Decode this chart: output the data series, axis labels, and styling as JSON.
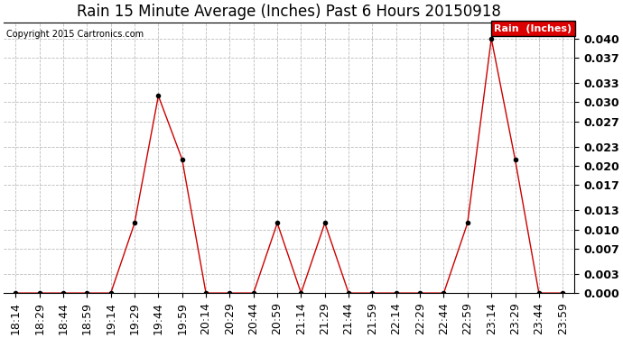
{
  "title": "Rain 15 Minute Average (Inches) Past 6 Hours 20150918",
  "copyright_text": "Copyright 2015 Cartronics.com",
  "legend_label": "Rain  (Inches)",
  "x_labels": [
    "18:14",
    "18:29",
    "18:44",
    "18:59",
    "19:14",
    "19:29",
    "19:44",
    "19:59",
    "20:14",
    "20:29",
    "20:44",
    "20:59",
    "21:14",
    "21:29",
    "21:44",
    "21:59",
    "22:14",
    "22:29",
    "22:44",
    "22:59",
    "23:14",
    "23:29",
    "23:44",
    "23:59"
  ],
  "y_values": [
    0.0,
    0.0,
    0.0,
    0.0,
    0.0,
    0.011,
    0.031,
    0.021,
    0.0,
    0.0,
    0.0,
    0.011,
    0.0,
    0.011,
    0.0,
    0.0,
    0.0,
    0.0,
    0.0,
    0.011,
    0.04,
    0.021,
    0.0,
    0.0
  ],
  "ylim": [
    0.0,
    0.0425
  ],
  "yticks": [
    0.0,
    0.003,
    0.007,
    0.01,
    0.013,
    0.017,
    0.02,
    0.023,
    0.027,
    0.03,
    0.033,
    0.037,
    0.04
  ],
  "line_color": "#cc0000",
  "marker_color": "black",
  "marker_size": 3,
  "grid_color": "#bbbbbb",
  "background_color": "#ffffff",
  "title_fontsize": 12,
  "copyright_fontsize": 7,
  "tick_fontsize": 9,
  "legend_bg_color": "#dd0000",
  "legend_text_color": "#ffffff"
}
